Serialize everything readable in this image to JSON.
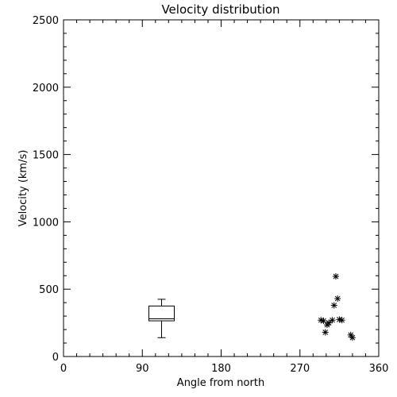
{
  "chart_data": {
    "type": "scatter",
    "title": "Velocity distribution",
    "xlabel": "Angle from north",
    "ylabel": "Velocity (km/s)",
    "xlim": [
      0,
      360
    ],
    "ylim": [
      0,
      2500
    ],
    "x_ticks": [
      "0",
      "90",
      "180",
      "270",
      "360"
    ],
    "y_ticks": [
      "0",
      "500",
      "1000",
      "1500",
      "2000",
      "2500"
    ],
    "x_tick_values": [
      0,
      90,
      180,
      270,
      360
    ],
    "y_tick_values": [
      0,
      500,
      1000,
      1500,
      2000,
      2500
    ],
    "grid": false,
    "boxplot": {
      "x": 112,
      "min": 140,
      "q1": 265,
      "median": 280,
      "q3": 375,
      "max": 425
    },
    "points": [
      {
        "x": 294,
        "y": 270
      },
      {
        "x": 297,
        "y": 265
      },
      {
        "x": 299,
        "y": 180
      },
      {
        "x": 301,
        "y": 235
      },
      {
        "x": 303,
        "y": 250
      },
      {
        "x": 307,
        "y": 270
      },
      {
        "x": 309,
        "y": 380
      },
      {
        "x": 311,
        "y": 595
      },
      {
        "x": 313,
        "y": 430
      },
      {
        "x": 315,
        "y": 275
      },
      {
        "x": 318,
        "y": 270
      },
      {
        "x": 328,
        "y": 160
      },
      {
        "x": 330,
        "y": 140
      }
    ]
  }
}
